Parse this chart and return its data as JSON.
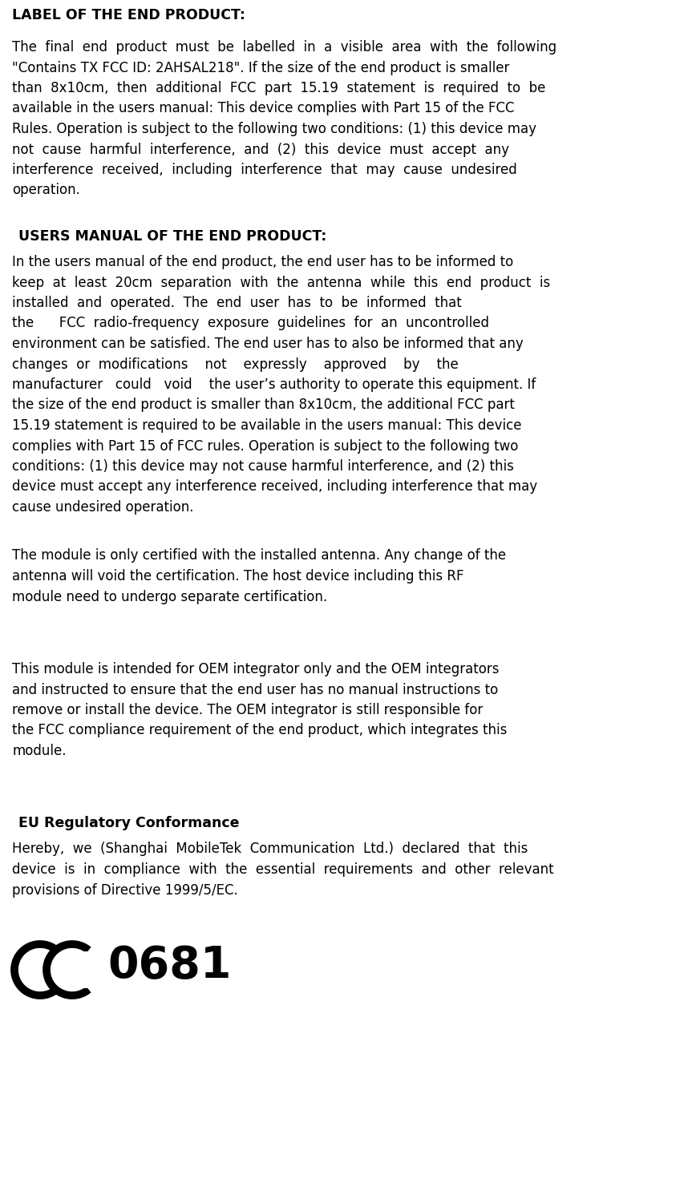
{
  "background_color": "#ffffff",
  "title1": "LABEL OF THE END PRODUCT:",
  "para1_lines": [
    "The  final  end  product  must  be  labelled  in  a  visible  area  with  the  following",
    "\"Contains TX FCC ID: 2AHSAL218\". If the size of the end product is smaller",
    "than  8x10cm,  then  additional  FCC  part  15.19  statement  is  required  to  be",
    "available in the users manual: This device complies with Part 15 of the FCC",
    "Rules. Operation is subject to the following two conditions: (1) this device may",
    "not  cause  harmful  interference,  and  (2)  this  device  must  accept  any",
    "interference  received,  including  interference  that  may  cause  undesired",
    "operation."
  ],
  "title2": "USERS MANUAL OF THE END PRODUCT:",
  "para2_lines": [
    "In the users manual of the end product, the end user has to be informed to",
    "keep  at  least  20cm  separation  with  the  antenna  while  this  end  product  is",
    "installed  and  operated.  The  end  user  has  to  be  informed  that",
    "the      FCC  radio-frequency  exposure  guidelines  for  an  uncontrolled",
    "environment can be satisfied. The end user has to also be informed that any",
    "changes  or  modifications    not    expressly    approved    by    the",
    "manufacturer   could   void    the user’s authority to operate this equipment. If",
    "the size of the end product is smaller than 8x10cm, the additional FCC part",
    "15.19 statement is required to be available in the users manual: This device",
    "complies with Part 15 of FCC rules. Operation is subject to the following two",
    "conditions: (1) this device may not cause harmful interference, and (2) this",
    "device must accept any interference received, including interference that may",
    "cause undesired operation."
  ],
  "para3_lines": [
    "The module is only certified with the installed antenna. Any change of the",
    "antenna will void the certification. The host device including this RF",
    "module need to undergo separate certification."
  ],
  "para4_lines": [
    "This module is intended for OEM integrator only and the OEM integrators",
    "and instructed to ensure that the end user has no manual instructions to",
    "remove or install the device. The OEM integrator is still responsible for",
    "the FCC compliance requirement of the end product, which integrates this",
    "module."
  ],
  "title3": "EU Regulatory Conformance",
  "para5_lines": [
    "Hereby,  we  (Shanghai  MobileTek  Communication  Ltd.)  declared  that  this",
    "device  is  in  compliance  with  the  essential  requirements  and  other  relevant",
    "provisions of Directive 1999/5/EC."
  ]
}
